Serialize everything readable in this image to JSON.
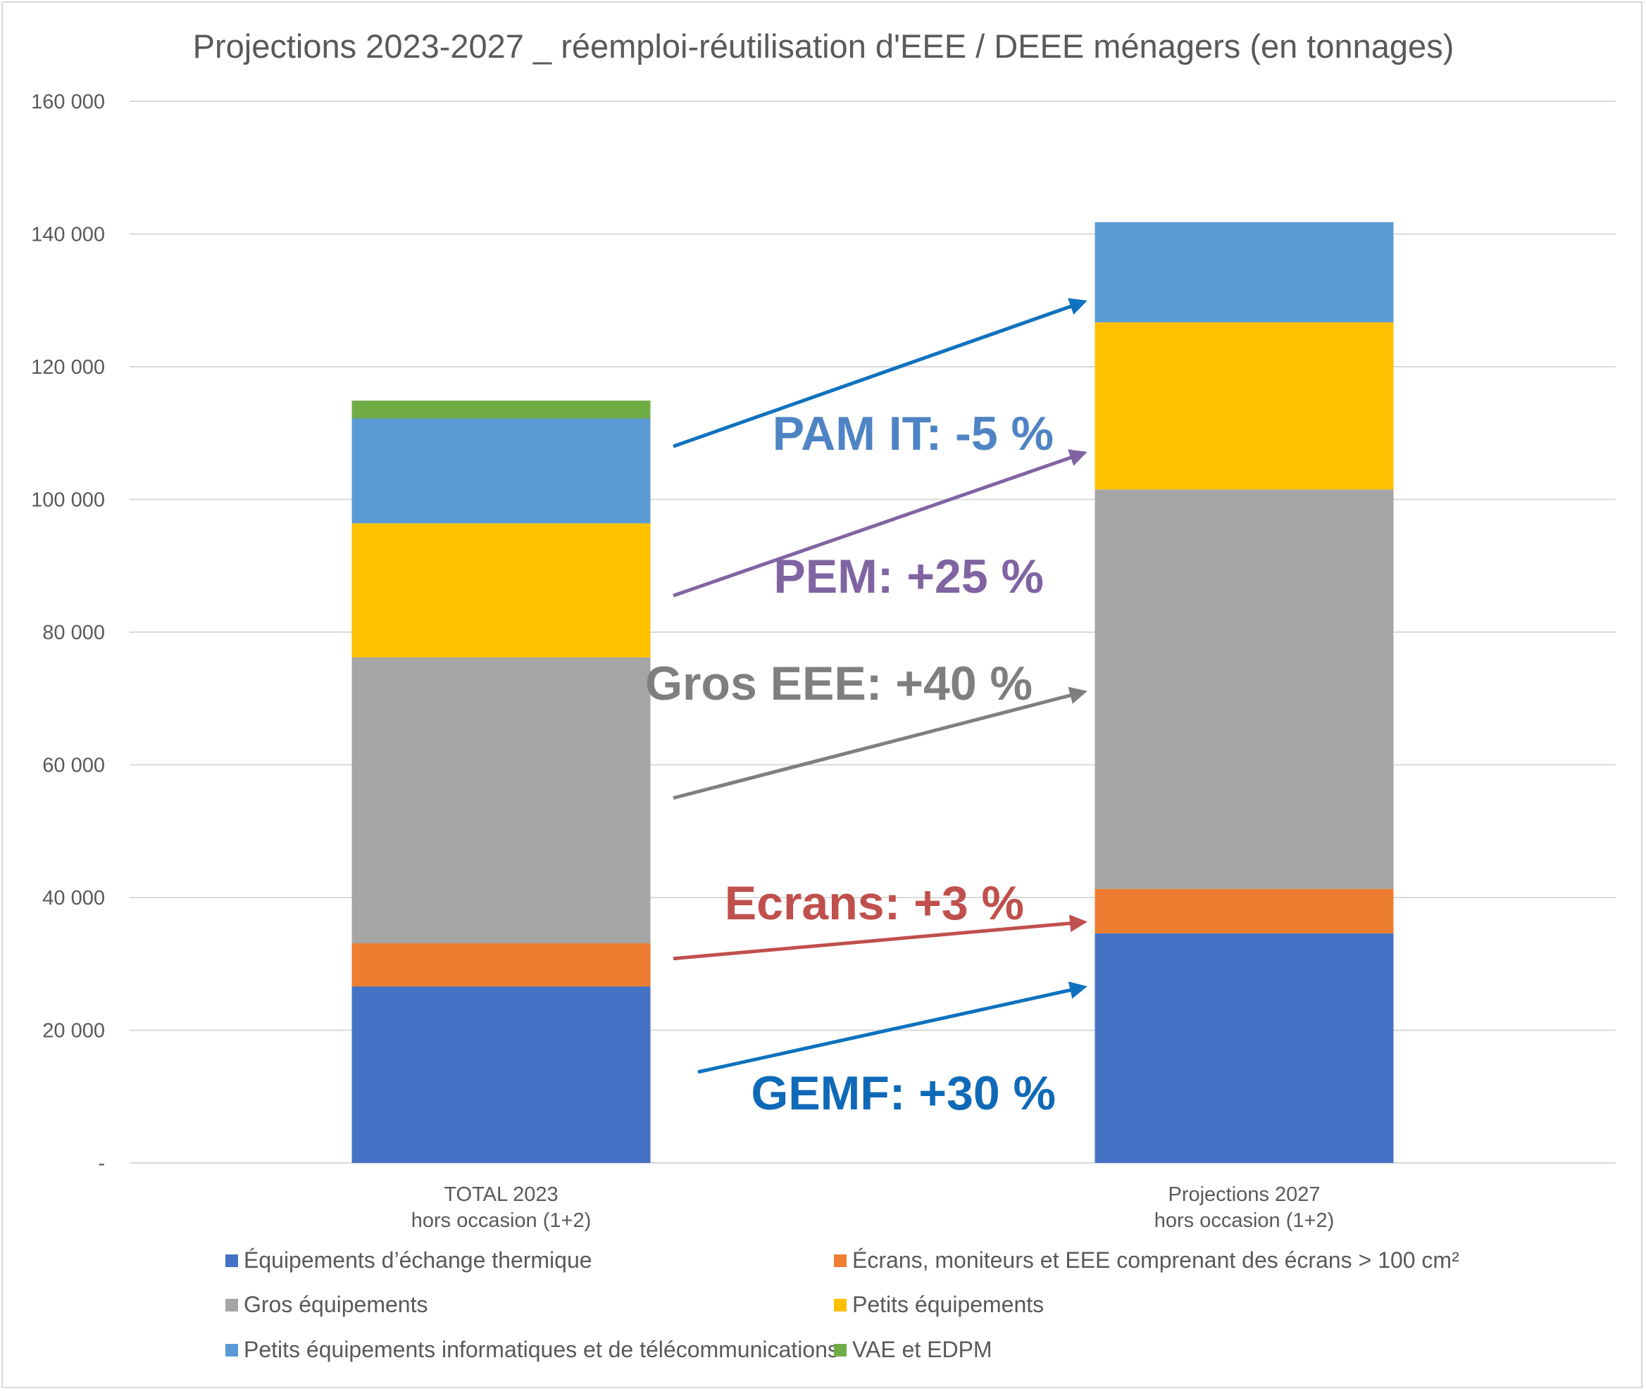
{
  "chart_data": {
    "type": "bar",
    "stacked": true,
    "title": "Projections 2023-2027 _ réemploi-réutilisation d'EEE / DEEE ménagers (en tonnages)",
    "xlabel": "",
    "ylabel": "",
    "ylim": [
      0,
      160000
    ],
    "yticks": [
      {
        "value": 0,
        "label": "-"
      },
      {
        "value": 20000,
        "label": "20 000"
      },
      {
        "value": 40000,
        "label": "40 000"
      },
      {
        "value": 60000,
        "label": "60 000"
      },
      {
        "value": 80000,
        "label": "80 000"
      },
      {
        "value": 100000,
        "label": "100 000"
      },
      {
        "value": 120000,
        "label": "120 000"
      },
      {
        "value": 140000,
        "label": "140 000"
      },
      {
        "value": 160000,
        "label": "160 000"
      }
    ],
    "grid": true,
    "legend_position": "bottom",
    "categories": [
      [
        "TOTAL 2023",
        "hors occasion (1+2)"
      ],
      [
        "Projections 2027",
        "hors occasion (1+2)"
      ]
    ],
    "series": [
      {
        "name": "Équipements d’échange thermique",
        "color": "#4472c4",
        "values": [
          26600,
          34600
        ]
      },
      {
        "name": "Écrans, moniteurs et EEE comprenant des écrans > 100 cm²",
        "color": "#ed7d31",
        "values": [
          6500,
          6700
        ]
      },
      {
        "name": "Gros équipements",
        "color": "#a5a5a5",
        "values": [
          43100,
          60200
        ]
      },
      {
        "name": "Petits équipements",
        "color": "#ffc000",
        "values": [
          20200,
          25200
        ]
      },
      {
        "name": "Petits équipements informatiques et de télécommunications",
        "color": "#5b9bd5",
        "values": [
          15800,
          15100
        ]
      },
      {
        "name": "VAE et EDPM",
        "color": "#70ad47",
        "values": [
          2700,
          0
        ]
      }
    ],
    "annotations": [
      {
        "text": "PAM IT: -5 %",
        "color": "#4f84c4"
      },
      {
        "text": "PEM: +25 %",
        "color": "#8064a2"
      },
      {
        "text": "Gros EEE: +40 %",
        "color": "#7f7f7f"
      },
      {
        "text": "Ecrans: +3 %",
        "color": "#c0504d"
      },
      {
        "text": "GEMF: +30 %",
        "color": "#0e6ab7"
      }
    ],
    "arrows": [
      {
        "color": "#0e72be",
        "from_value": 108000,
        "to_value": 129800
      },
      {
        "color": "#8064a2",
        "from_value": 85500,
        "to_value": 107000
      },
      {
        "color": "#7f7f7f",
        "from_value": 55000,
        "to_value": 71000
      },
      {
        "color": "#c0504d",
        "from_value": 30800,
        "to_value": 36300
      },
      {
        "color": "#0e72be",
        "from_value": 13700,
        "to_value": 26500
      }
    ]
  }
}
